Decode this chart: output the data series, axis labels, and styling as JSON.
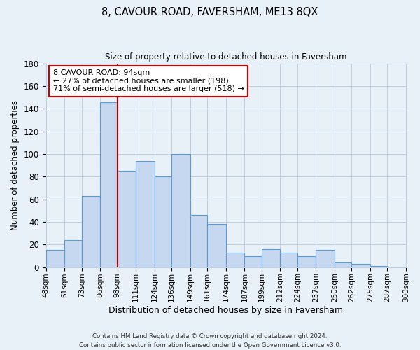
{
  "title": "8, CAVOUR ROAD, FAVERSHAM, ME13 8QX",
  "subtitle": "Size of property relative to detached houses in Faversham",
  "xlabel": "Distribution of detached houses by size in Faversham",
  "ylabel": "Number of detached properties",
  "footer_line1": "Contains HM Land Registry data © Crown copyright and database right 2024.",
  "footer_line2": "Contains public sector information licensed under the Open Government Licence v3.0.",
  "bin_labels": [
    "48sqm",
    "61sqm",
    "73sqm",
    "86sqm",
    "98sqm",
    "111sqm",
    "124sqm",
    "136sqm",
    "149sqm",
    "161sqm",
    "174sqm",
    "187sqm",
    "199sqm",
    "212sqm",
    "224sqm",
    "237sqm",
    "250sqm",
    "262sqm",
    "275sqm",
    "287sqm",
    "300sqm"
  ],
  "bar_heights": [
    15,
    24,
    63,
    146,
    85,
    94,
    80,
    100,
    46,
    38,
    13,
    10,
    16,
    13,
    10,
    15,
    4,
    3,
    1,
    0
  ],
  "bar_color": "#c5d8f0",
  "bar_edge_color": "#5b9bd5",
  "grid_color": "#c0d0e0",
  "background_color": "#e8f0f8",
  "vline_x_index": 4,
  "vline_color": "#aa0000",
  "ylim": [
    0,
    180
  ],
  "yticks": [
    0,
    20,
    40,
    60,
    80,
    100,
    120,
    140,
    160,
    180
  ],
  "annotation_line1": "8 CAVOUR ROAD: 94sqm",
  "annotation_line2": "← 27% of detached houses are smaller (198)",
  "annotation_line3": "71% of semi-detached houses are larger (518) →",
  "annotation_box_color": "white",
  "annotation_box_edge_color": "#cc0000",
  "bin_edges": [
    48,
    61,
    73,
    86,
    98,
    111,
    124,
    136,
    149,
    161,
    174,
    187,
    199,
    212,
    224,
    237,
    250,
    262,
    275,
    287,
    300
  ]
}
